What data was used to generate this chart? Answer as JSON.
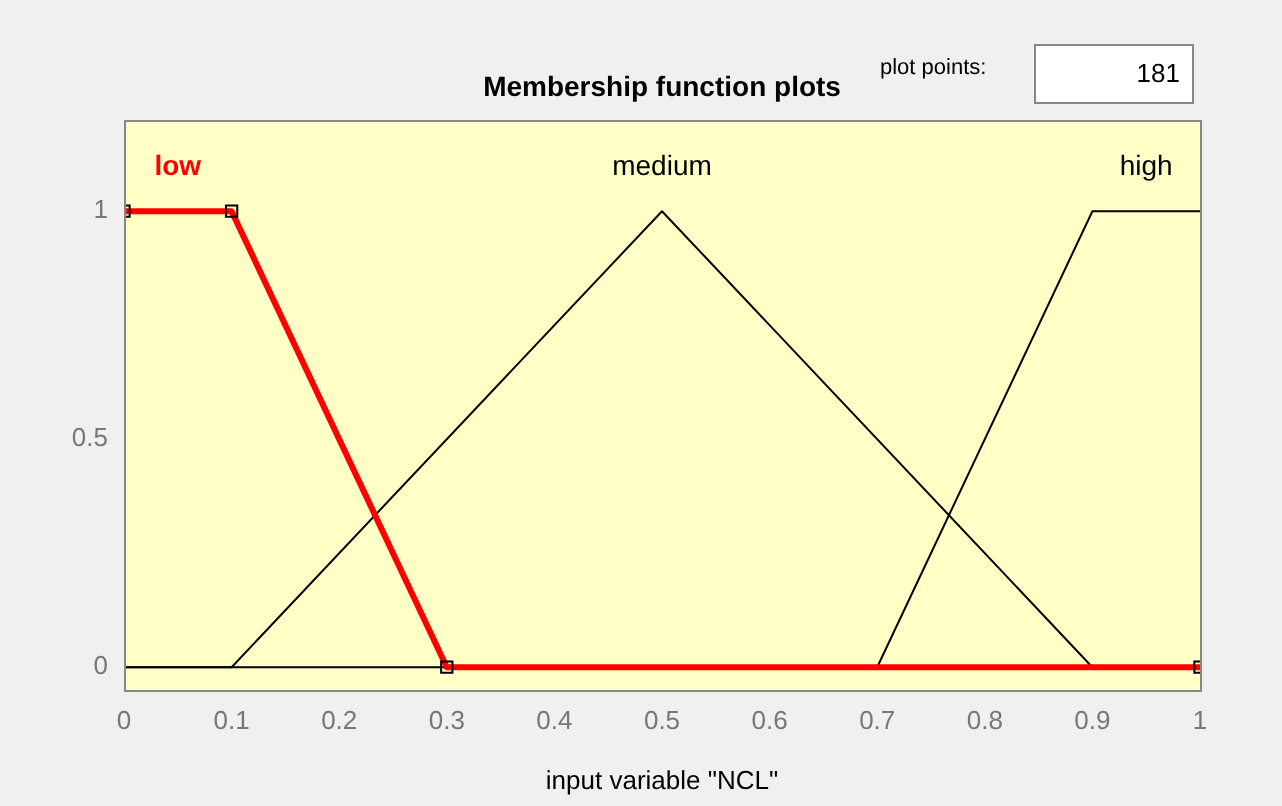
{
  "chart_data": {
    "type": "line",
    "title": "Membership function plots",
    "xlabel": "input variable \"NCL\"",
    "annotations": [
      "plot points:",
      "181"
    ],
    "xlim": [
      0,
      1
    ],
    "xticks": [
      0,
      0.1,
      0.2,
      0.3,
      0.4,
      0.5,
      0.6,
      0.7,
      0.8,
      0.9,
      1
    ],
    "ylim": [
      -0.05,
      1.2
    ],
    "yticks": [
      0,
      0.5,
      1
    ],
    "grid": false,
    "legend": false,
    "line_style": "solid",
    "series": [
      {
        "name": "low",
        "color": "#ff0000",
        "marker": "square",
        "x": [
          0,
          0.1,
          0.3,
          1
        ],
        "values": [
          1,
          1,
          0,
          0
        ]
      },
      {
        "name": "medium",
        "color": "#000000",
        "marker": "none",
        "x": [
          0,
          0.1,
          0.5,
          0.9,
          1
        ],
        "values": [
          0,
          0,
          1,
          0,
          0
        ]
      },
      {
        "name": "high",
        "color": "#000000",
        "marker": "none",
        "x": [
          0,
          0.7,
          0.9,
          1
        ],
        "values": [
          0,
          0,
          1,
          1
        ]
      }
    ]
  }
}
